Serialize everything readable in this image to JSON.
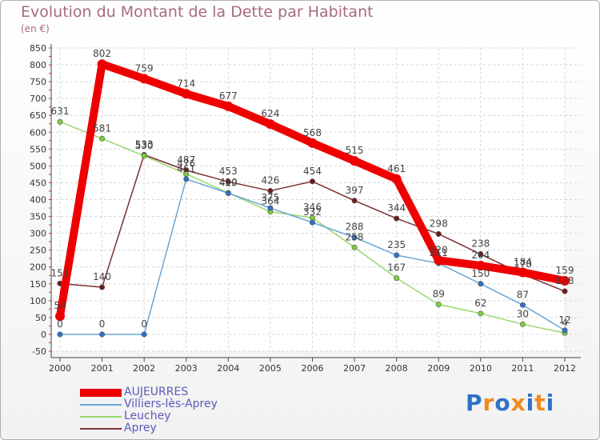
{
  "chart_data": {
    "type": "line",
    "title": "Evolution du Montant de la Dette par Habitant",
    "subtitle": "(en €)",
    "xlabel": "",
    "ylabel": "",
    "categories": [
      "2000",
      "2001",
      "2002",
      "2003",
      "2004",
      "2005",
      "2006",
      "2007",
      "2008",
      "2009",
      "2010",
      "2011",
      "2012"
    ],
    "ylim": [
      -50,
      850
    ],
    "yticks": [
      "-50",
      "0",
      "50",
      "100",
      "150",
      "200",
      "250",
      "300",
      "350",
      "400",
      "450",
      "500",
      "550",
      "600",
      "650",
      "700",
      "750",
      "800",
      "850"
    ],
    "grid": true,
    "series": [
      {
        "name": "AUJEURRES",
        "color": "#ee0000",
        "marker": "#ee0000",
        "values": [
          54,
          802,
          759,
          714,
          677,
          624,
          568,
          515,
          461,
          220,
          204,
          184,
          159
        ],
        "labels": [
          "54",
          "802",
          "759",
          "714",
          "677",
          "624",
          "568",
          "515",
          "461",
          "220",
          "204",
          "184",
          "159"
        ]
      },
      {
        "name": "Villiers-lès-Aprey",
        "color": "#6aa6d6",
        "marker": "#2e72c8",
        "values": [
          0,
          0,
          0,
          461,
          419,
          375,
          332,
          288,
          235,
          211,
          150,
          87,
          12
        ],
        "labels": [
          "0",
          "0",
          "0",
          "461",
          "419",
          "375",
          "332",
          "288",
          "235",
          "211",
          "150",
          "87",
          "12"
        ]
      },
      {
        "name": "Leuchey",
        "color": "#99d96c",
        "marker": "#7ccf3a",
        "values": [
          631,
          581,
          530,
          476,
          420,
          364,
          346,
          258,
          167,
          89,
          62,
          30,
          4
        ],
        "labels": [
          "631",
          "581",
          "530",
          "476",
          "420",
          "364",
          "346",
          "258",
          "167",
          "89",
          "62",
          "30",
          "4"
        ]
      },
      {
        "name": "Aprey",
        "color": "#7c3030",
        "marker": "#6e1b1b",
        "values": [
          151,
          140,
          533,
          487,
          453,
          426,
          454,
          397,
          344,
          298,
          238,
          178,
          128
        ],
        "labels": [
          "151",
          "140",
          "533",
          "487",
          "453",
          "426",
          "454",
          "397",
          "344",
          "298",
          "238",
          "178",
          "128"
        ]
      }
    ]
  },
  "legend": {
    "items": [
      "AUJEURRES",
      "Villiers-lès-Aprey",
      "Leuchey",
      "Aprey"
    ]
  },
  "brand": {
    "letters": [
      "P",
      "r",
      "o",
      "x",
      "i",
      "t",
      "i"
    ],
    "colors": [
      "#2e72c8",
      "#f08a1c",
      "#2e72c8",
      "#f08a1c",
      "#2e72c8",
      "#f08a1c",
      "#2e72c8"
    ]
  }
}
